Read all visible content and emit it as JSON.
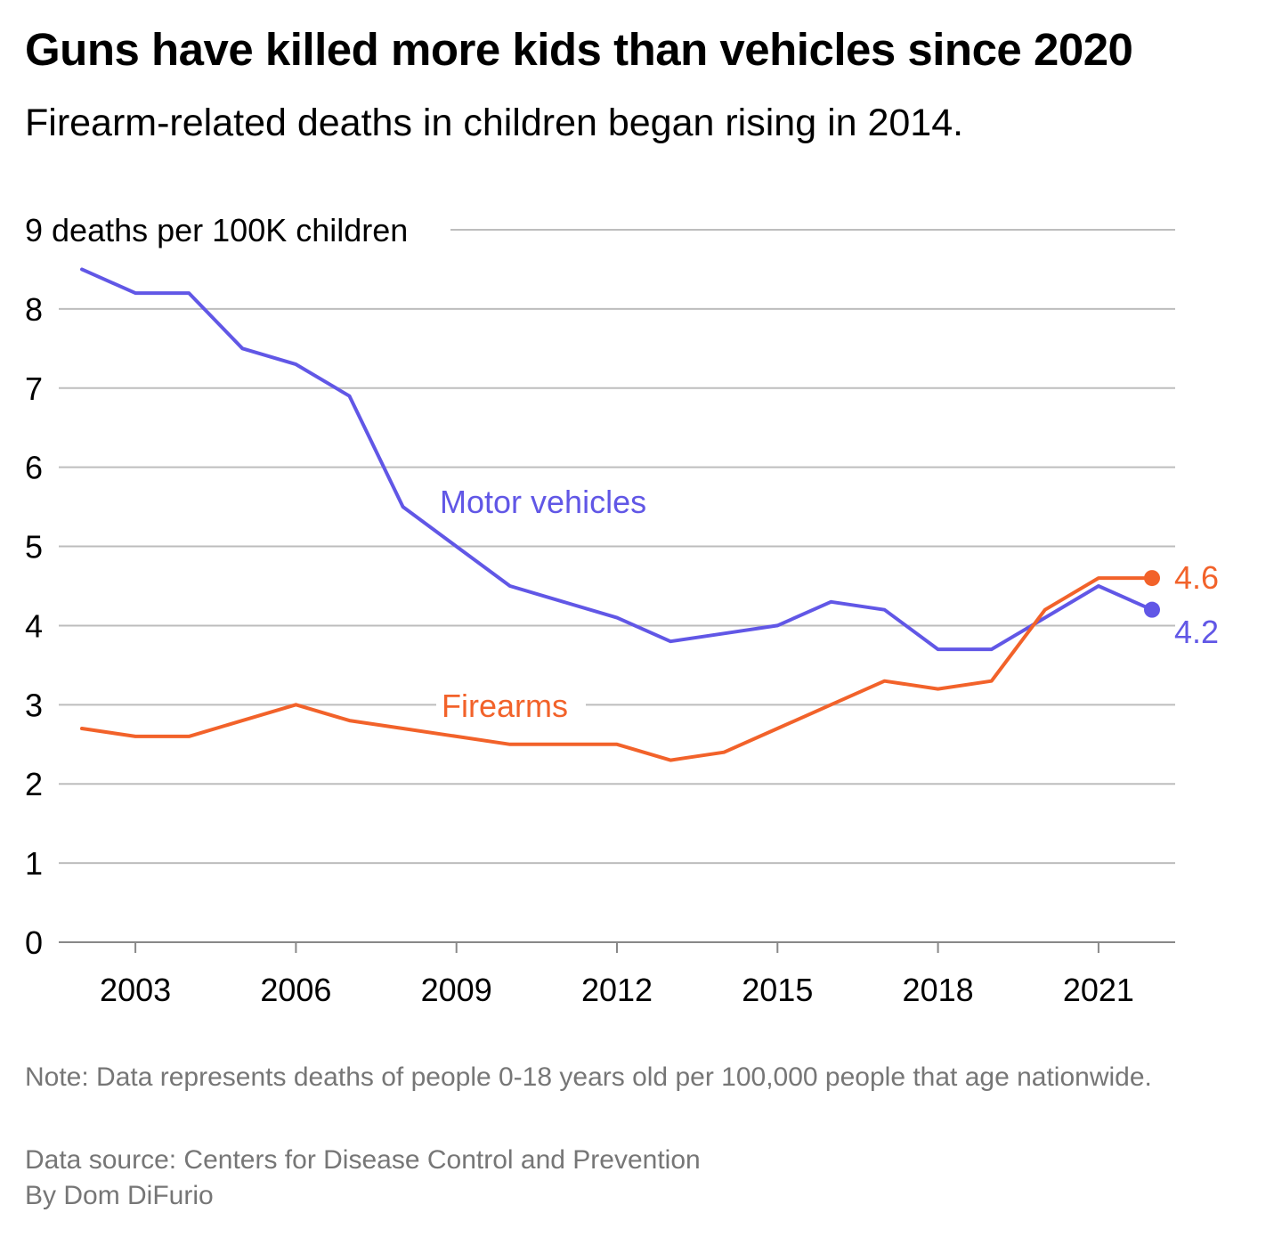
{
  "header": {
    "title": "Guns have killed more kids than vehicles since 2020",
    "subtitle": "Firearm-related deaths in children began rising in 2014."
  },
  "footer": {
    "note": "Note: Data represents deaths of people 0-18 years old per 100,000 people that age nationwide.",
    "source": "Data source: Centers for Disease Control and Prevention",
    "byline": "By Dom DiFurio"
  },
  "colors": {
    "motor_vehicles": "#6157e6",
    "firearms": "#f2622a",
    "grid": "#bdbdbd",
    "axis": "#888888",
    "text": "#000000",
    "muted": "#767676"
  },
  "chart_data": {
    "type": "line",
    "title": "Guns have killed more kids than vehicles since 2020",
    "subtitle": "Firearm-related deaths in children began rising in 2014.",
    "ylabel": "deaths per 100K children",
    "ylim": [
      0,
      9
    ],
    "yticks": [
      0,
      1,
      2,
      3,
      4,
      5,
      6,
      7,
      8,
      9
    ],
    "ytick_labels": [
      "0",
      "1",
      "2",
      "3",
      "4",
      "5",
      "6",
      "7",
      "8",
      "9 deaths per 100K children"
    ],
    "xlim": [
      2001.5,
      2022.4
    ],
    "xticks": [
      2003,
      2006,
      2009,
      2012,
      2015,
      2018,
      2021
    ],
    "xtick_labels": [
      "2003",
      "2006",
      "2009",
      "2012",
      "2015",
      "2018",
      "2021"
    ],
    "x": [
      2002,
      2003,
      2004,
      2005,
      2006,
      2007,
      2008,
      2009,
      2010,
      2011,
      2012,
      2013,
      2014,
      2015,
      2016,
      2017,
      2018,
      2019,
      2020,
      2021,
      2022
    ],
    "grid": true,
    "legend": "direct labels",
    "series": [
      {
        "name": "Motor vehicles",
        "color": "#6157e6",
        "values": [
          8.5,
          8.2,
          8.2,
          7.5,
          7.3,
          6.9,
          5.5,
          5.0,
          4.5,
          4.3,
          4.1,
          3.8,
          3.9,
          4.0,
          4.3,
          4.2,
          3.7,
          3.7,
          4.1,
          4.5,
          4.2
        ],
        "end_label": "4.2"
      },
      {
        "name": "Firearms",
        "color": "#f2622a",
        "values": [
          2.7,
          2.6,
          2.6,
          2.8,
          3.0,
          2.8,
          2.7,
          2.6,
          2.5,
          2.5,
          2.5,
          2.3,
          2.4,
          2.7,
          3.0,
          3.3,
          3.2,
          3.3,
          4.2,
          4.6,
          4.6
        ],
        "end_label": "4.6"
      }
    ]
  }
}
